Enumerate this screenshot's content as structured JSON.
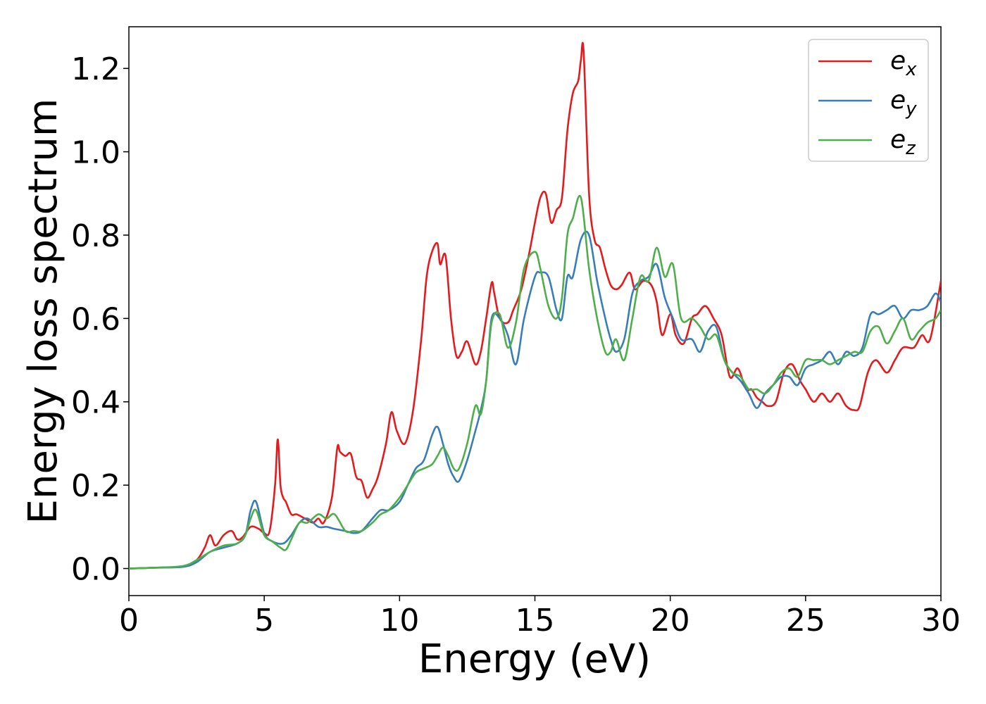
{
  "chart_data": {
    "type": "line",
    "xlabel": "Energy (eV)",
    "ylabel": "Energy loss spectrum",
    "xlim": [
      0,
      30
    ],
    "ylim": [
      -0.065,
      1.3
    ],
    "xticks": [
      0,
      5,
      10,
      15,
      20,
      25,
      30
    ],
    "xtick_labels": [
      "0",
      "5",
      "10",
      "15",
      "20",
      "25",
      "30"
    ],
    "yticks": [
      0.0,
      0.2,
      0.4,
      0.6,
      0.8,
      1.0,
      1.2
    ],
    "ytick_labels": [
      "0.0",
      "0.2",
      "0.4",
      "0.6",
      "0.8",
      "1.0",
      "1.2"
    ],
    "grid": false,
    "legend_position": "top-right",
    "series": [
      {
        "name": "e",
        "name_sub": "x",
        "color": "#e41a1c",
        "x": [
          0,
          1,
          2,
          2.5,
          2.8,
          3.0,
          3.2,
          3.5,
          3.8,
          4.0,
          4.2,
          4.5,
          4.8,
          5.0,
          5.2,
          5.4,
          5.5,
          5.6,
          5.7,
          5.8,
          6.0,
          6.2,
          6.5,
          6.8,
          7.0,
          7.2,
          7.5,
          7.7,
          7.8,
          8.0,
          8.2,
          8.4,
          8.6,
          8.8,
          9.0,
          9.2,
          9.5,
          9.7,
          9.9,
          10.2,
          10.5,
          10.8,
          11.0,
          11.2,
          11.4,
          11.5,
          11.7,
          11.9,
          12.1,
          12.3,
          12.5,
          12.8,
          13.0,
          13.2,
          13.4,
          13.5,
          13.7,
          14.0,
          14.2,
          14.5,
          14.8,
          15.0,
          15.2,
          15.4,
          15.6,
          15.8,
          16.0,
          16.2,
          16.4,
          16.6,
          16.7,
          16.8,
          17.0,
          17.2,
          17.4,
          17.6,
          17.8,
          18.0,
          18.2,
          18.5,
          18.7,
          19.0,
          19.3,
          19.5,
          19.7,
          20.0,
          20.2,
          20.5,
          20.8,
          21.0,
          21.3,
          21.6,
          21.9,
          22.2,
          22.5,
          22.8,
          23.0,
          23.2,
          23.4,
          23.6,
          23.9,
          24.2,
          24.5,
          24.8,
          25.0,
          25.3,
          25.6,
          25.9,
          26.2,
          26.5,
          26.8,
          27.0,
          27.3,
          27.6,
          28.0,
          28.3,
          28.6,
          29.0,
          29.3,
          29.6,
          30.0
        ],
        "y": [
          0,
          0.002,
          0.005,
          0.02,
          0.05,
          0.08,
          0.055,
          0.08,
          0.09,
          0.07,
          0.075,
          0.1,
          0.095,
          0.085,
          0.09,
          0.2,
          0.31,
          0.2,
          0.17,
          0.16,
          0.13,
          0.13,
          0.12,
          0.11,
          0.12,
          0.11,
          0.17,
          0.29,
          0.28,
          0.27,
          0.275,
          0.22,
          0.21,
          0.17,
          0.19,
          0.22,
          0.3,
          0.375,
          0.33,
          0.3,
          0.38,
          0.55,
          0.7,
          0.76,
          0.78,
          0.73,
          0.75,
          0.6,
          0.51,
          0.52,
          0.545,
          0.49,
          0.52,
          0.6,
          0.685,
          0.66,
          0.6,
          0.59,
          0.62,
          0.67,
          0.76,
          0.83,
          0.89,
          0.9,
          0.83,
          0.86,
          0.89,
          1.05,
          1.14,
          1.17,
          1.22,
          1.24,
          0.9,
          0.79,
          0.77,
          0.72,
          0.68,
          0.67,
          0.68,
          0.71,
          0.67,
          0.69,
          0.68,
          0.64,
          0.56,
          0.61,
          0.56,
          0.54,
          0.6,
          0.61,
          0.63,
          0.6,
          0.56,
          0.46,
          0.48,
          0.43,
          0.43,
          0.41,
          0.4,
          0.39,
          0.4,
          0.47,
          0.49,
          0.45,
          0.43,
          0.4,
          0.42,
          0.4,
          0.42,
          0.39,
          0.38,
          0.39,
          0.47,
          0.5,
          0.47,
          0.5,
          0.53,
          0.53,
          0.56,
          0.55,
          0.69
        ]
      },
      {
        "name": "e",
        "name_sub": "y",
        "color": "#377eb8",
        "x": [
          0,
          1,
          2,
          2.5,
          3.0,
          3.5,
          4.0,
          4.3,
          4.5,
          4.7,
          5.0,
          5.3,
          5.7,
          6.0,
          6.3,
          6.6,
          7.0,
          7.3,
          7.6,
          8.0,
          8.3,
          8.6,
          9.0,
          9.3,
          9.6,
          10.0,
          10.3,
          10.6,
          10.9,
          11.2,
          11.4,
          11.6,
          11.8,
          12.0,
          12.2,
          12.5,
          12.8,
          13.0,
          13.2,
          13.4,
          13.7,
          14.0,
          14.3,
          14.6,
          15.0,
          15.2,
          15.5,
          15.8,
          16.0,
          16.2,
          16.4,
          16.7,
          17.0,
          17.3,
          17.6,
          17.8,
          18.0,
          18.3,
          18.6,
          18.9,
          19.2,
          19.5,
          19.8,
          20.1,
          20.4,
          20.8,
          21.1,
          21.4,
          21.7,
          22.0,
          22.3,
          22.6,
          22.9,
          23.2,
          23.5,
          23.8,
          24.1,
          24.4,
          24.7,
          25.0,
          25.3,
          25.6,
          25.9,
          26.2,
          26.5,
          26.8,
          27.1,
          27.4,
          27.7,
          28.0,
          28.3,
          28.6,
          28.9,
          29.2,
          29.5,
          29.8,
          30.0
        ],
        "y": [
          0,
          0.002,
          0.004,
          0.015,
          0.04,
          0.05,
          0.06,
          0.08,
          0.14,
          0.16,
          0.085,
          0.065,
          0.06,
          0.08,
          0.11,
          0.12,
          0.1,
          0.1,
          0.095,
          0.09,
          0.085,
          0.09,
          0.12,
          0.14,
          0.14,
          0.16,
          0.2,
          0.24,
          0.26,
          0.32,
          0.34,
          0.3,
          0.25,
          0.22,
          0.21,
          0.26,
          0.33,
          0.38,
          0.45,
          0.6,
          0.6,
          0.56,
          0.49,
          0.6,
          0.7,
          0.71,
          0.7,
          0.62,
          0.6,
          0.7,
          0.7,
          0.79,
          0.8,
          0.69,
          0.6,
          0.55,
          0.52,
          0.55,
          0.66,
          0.69,
          0.7,
          0.73,
          0.65,
          0.6,
          0.55,
          0.55,
          0.52,
          0.57,
          0.58,
          0.5,
          0.47,
          0.45,
          0.42,
          0.385,
          0.42,
          0.44,
          0.46,
          0.46,
          0.44,
          0.48,
          0.49,
          0.5,
          0.52,
          0.49,
          0.52,
          0.51,
          0.53,
          0.61,
          0.61,
          0.62,
          0.63,
          0.6,
          0.62,
          0.62,
          0.63,
          0.66,
          0.64
        ]
      },
      {
        "name": "e",
        "name_sub": "z",
        "color": "#4daf4a",
        "x": [
          0,
          1,
          2,
          2.5,
          3.0,
          3.5,
          4.0,
          4.3,
          4.5,
          4.7,
          5.0,
          5.3,
          5.6,
          5.8,
          6.0,
          6.3,
          6.6,
          7.0,
          7.3,
          7.6,
          8.0,
          8.3,
          8.6,
          9.0,
          9.3,
          9.6,
          10.0,
          10.3,
          10.6,
          10.9,
          11.2,
          11.4,
          11.6,
          11.8,
          12.0,
          12.2,
          12.5,
          12.8,
          13.0,
          13.2,
          13.4,
          13.7,
          14.0,
          14.3,
          14.6,
          15.0,
          15.2,
          15.5,
          15.8,
          16.0,
          16.2,
          16.4,
          16.7,
          17.0,
          17.3,
          17.6,
          17.8,
          18.0,
          18.3,
          18.6,
          18.9,
          19.2,
          19.5,
          19.8,
          20.1,
          20.4,
          20.8,
          21.1,
          21.4,
          21.7,
          22.0,
          22.3,
          22.6,
          22.9,
          23.2,
          23.5,
          23.8,
          24.1,
          24.4,
          24.7,
          25.0,
          25.3,
          25.6,
          25.9,
          26.2,
          26.5,
          26.8,
          27.1,
          27.4,
          27.7,
          28.0,
          28.3,
          28.6,
          28.9,
          29.2,
          29.5,
          29.8,
          30.0
        ],
        "y": [
          0,
          0.002,
          0.006,
          0.02,
          0.04,
          0.055,
          0.06,
          0.08,
          0.12,
          0.14,
          0.08,
          0.065,
          0.05,
          0.045,
          0.07,
          0.11,
          0.11,
          0.13,
          0.12,
          0.13,
          0.09,
          0.09,
          0.09,
          0.11,
          0.13,
          0.14,
          0.17,
          0.2,
          0.23,
          0.24,
          0.25,
          0.27,
          0.29,
          0.27,
          0.24,
          0.24,
          0.3,
          0.39,
          0.37,
          0.45,
          0.59,
          0.61,
          0.53,
          0.59,
          0.72,
          0.76,
          0.72,
          0.63,
          0.6,
          0.65,
          0.8,
          0.84,
          0.89,
          0.72,
          0.6,
          0.52,
          0.52,
          0.55,
          0.5,
          0.6,
          0.7,
          0.69,
          0.77,
          0.7,
          0.73,
          0.6,
          0.6,
          0.58,
          0.55,
          0.56,
          0.5,
          0.47,
          0.46,
          0.43,
          0.43,
          0.42,
          0.44,
          0.47,
          0.48,
          0.46,
          0.5,
          0.5,
          0.5,
          0.49,
          0.5,
          0.51,
          0.52,
          0.52,
          0.57,
          0.58,
          0.54,
          0.57,
          0.6,
          0.55,
          0.57,
          0.59,
          0.6,
          0.62
        ]
      }
    ]
  }
}
